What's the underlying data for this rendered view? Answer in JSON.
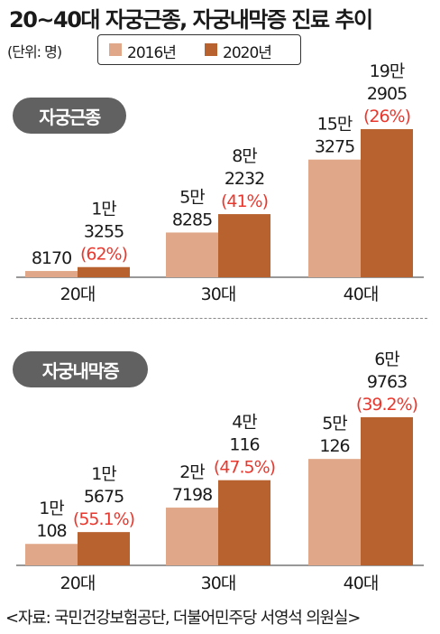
{
  "title": "20~40대 자궁근종, 자궁내막증 진료 추이",
  "unit_note": "(단위: 명)",
  "colors": {
    "y2016": "#e0a888",
    "y2020": "#b8622f",
    "pct": "#e8382e",
    "pill_bg": "#616161"
  },
  "legend": [
    {
      "label": "2016년",
      "color": "#e0a888"
    },
    {
      "label": "2020년",
      "color": "#b8622f"
    }
  ],
  "source": "<자료: 국민건강보험공단, 더불어민주당 서영석 의원실>",
  "chart_data": [
    {
      "type": "bar",
      "title": "자궁근종",
      "categories": [
        "20대",
        "30대",
        "40대"
      ],
      "series": [
        {
          "name": "2016년",
          "values": [
            8170,
            58285,
            153275
          ],
          "labels": [
            [
              "8170"
            ],
            [
              "5만",
              "8285"
            ],
            [
              "15만",
              "3275"
            ]
          ]
        },
        {
          "name": "2020년",
          "values": [
            13255,
            82232,
            192905
          ],
          "labels": [
            [
              "1만",
              "3255"
            ],
            [
              "8만",
              "2232"
            ],
            [
              "19만",
              "2905"
            ]
          ],
          "pct": [
            "(62%)",
            "(41%)",
            "(26%)"
          ]
        }
      ]
    },
    {
      "type": "bar",
      "title": "자궁내막증",
      "categories": [
        "20대",
        "30대",
        "40대"
      ],
      "series": [
        {
          "name": "2016년",
          "values": [
            10108,
            27198,
            50126
          ],
          "labels": [
            [
              "1만",
              "108"
            ],
            [
              "2만",
              "7198"
            ],
            [
              "5만",
              "126"
            ]
          ]
        },
        {
          "name": "2020년",
          "values": [
            15675,
            40116,
            69763
          ],
          "labels": [
            [
              "1만",
              "5675"
            ],
            [
              "4만",
              "116"
            ],
            [
              "6만",
              "9763"
            ]
          ],
          "pct": [
            "(55.1%)",
            "(47.5%)",
            "(39.2%)"
          ]
        }
      ]
    }
  ]
}
